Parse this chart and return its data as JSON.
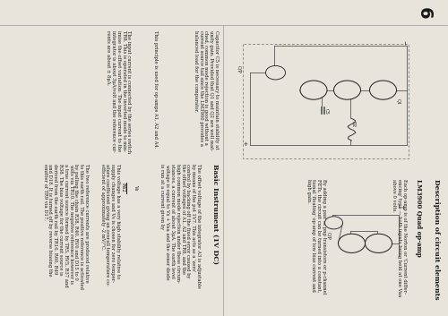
{
  "page_bg": "#e8e4dc",
  "page_number": "6",
  "font_size_title": 5.5,
  "font_size_subtitle": 5.0,
  "font_size_body": 3.8,
  "font_size_small": 3.4,
  "font_size_pagenum": 14,
  "col_divider": 0.48,
  "row_divider": 0.52,
  "text_color": "#1a1a1a",
  "line_color": "#555555",
  "title1": "Description of circuit elements",
  "subtitle1": "LM3900 Quad op-amp",
  "body1_1": "Each op-amp is of the Norton or 'Current differ-\nencing' type — both inputs being held at one Vaa\nabove 0 volts.",
  "body1_2": "By adding a pair of pnp transistors or p-channel\nFETs, the circuit can be turned into a constant,\ntional 'floating' op-amp of low bias current and\nhigh gain.",
  "body2_1": "Capacitor C5 is necessary to maintain stability at\nunity gain. Provided that Q1 and Q2 are well mat-\nched, common mode rejection is good without a\ncurrent source tail since the LM3900 provides a\nbalanced load for the comparator.",
  "body2_2": "This principle is used for op-amps A1, A2 and A4.",
  "title2": "Basic Instrument (1V DC)",
  "body3_1": "The offset voltage of the integrator A3 is adjustable\nby means of the pot 1V7. This acts as a 'zero'\ncontrol by backing off the fixed error caused by\nthe offset voltages of A1, A2 and TR8, and the\nhigh common mode rejection under these circum-\nstances, a current of about 3μA. The earth level\nvoltage is equal to Vs + Vaa and the zener diode\nis run at a current given by",
  "body3_frac_num": "Vs",
  "body3_frac_den": "R42",
  "body3_2": "This voltage has a very high stability relative to\nsupply changes and Vs is chosen for zero temper-\nature coefficient giving an overall temperature co-\nefficient of approximately -2 mV/°C.",
  "body3_3": "The two reference currents are produced relative\nto this earth rail. The positive reference is activated\nby pulling the chain R38, R40, RV6 and D15 to 0\nvolts via TR10. The negative reference however is\na true current source formed by TR5, RV5, R37 and\nR38. The bias voltage for the current source is\nderived from the earth rail by TR16. R60, R49\nand D18. It is turned off by reverse biasing the\nemitter of TR9 via D17.",
  "body4_1": "The input current is connected by the series switch\nTR8. This is operated in the inverted mode to min-\nimise the offset variation. The input current to the\nintegrator is about 3μA/volt and the reference cur-\nrents are about ± 8μA."
}
